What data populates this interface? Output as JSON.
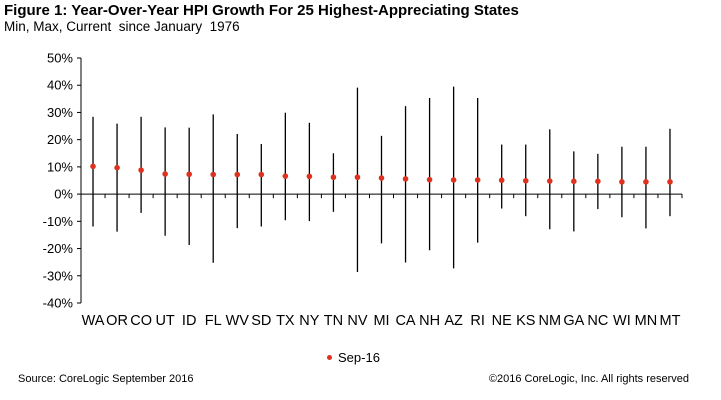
{
  "header": {
    "title": "Figure 1: Year-Over-Year HPI Growth For 25 Highest-Appreciating States",
    "subtitle": "Min, Max, Current  since January  1976"
  },
  "footer": {
    "source": "Source: CoreLogic September 2016",
    "copyright": "©2016 CoreLogic, Inc. All rights reserved"
  },
  "chart_data": {
    "type": "scatter",
    "subtype": "high-low-current",
    "title": "Figure 1: Year-Over-Year HPI Growth For 25 Highest-Appreciating States",
    "subtitle": "Min, Max, Current  since January  1976",
    "categories": [
      "WA",
      "OR",
      "CO",
      "UT",
      "ID",
      "FL",
      "WV",
      "SD",
      "TX",
      "NY",
      "TN",
      "NV",
      "MI",
      "CA",
      "NH",
      "AZ",
      "RI",
      "NE",
      "KS",
      "NM",
      "GA",
      "NC",
      "WI",
      "MN",
      "MT"
    ],
    "series": [
      {
        "name": "Sep-16",
        "color": "#e0301e",
        "values": [
          10.2,
          9.7,
          8.8,
          7.4,
          7.3,
          7.2,
          7.2,
          7.2,
          6.6,
          6.5,
          6.2,
          6.2,
          5.9,
          5.6,
          5.3,
          5.2,
          5.2,
          5.1,
          4.9,
          4.8,
          4.7,
          4.7,
          4.5,
          4.5,
          4.5
        ]
      }
    ],
    "min_values": [
      -11.9,
      -13.8,
      -6.9,
      -15.3,
      -18.7,
      -25.2,
      -12.5,
      -11.9,
      -9.6,
      -9.9,
      -6.5,
      -28.6,
      -18.1,
      -25.1,
      -20.6,
      -27.3,
      -17.8,
      -5.3,
      -8.1,
      -12.9,
      -13.7,
      -5.5,
      -8.5,
      -12.6,
      -8.1
    ],
    "max_values": [
      28.4,
      25.9,
      28.4,
      24.5,
      24.4,
      29.3,
      22.1,
      18.4,
      29.9,
      26.2,
      15.0,
      39.1,
      21.4,
      32.3,
      35.3,
      39.5,
      35.3,
      18.2,
      18.2,
      23.8,
      15.7,
      14.8,
      17.4,
      17.4,
      24.0
    ],
    "y_ticks": [
      "50%",
      "40%",
      "30%",
      "20%",
      "10%",
      "0%",
      "-10%",
      "-20%",
      "-30%",
      "-40%"
    ],
    "ylim": [
      -40,
      50
    ],
    "y_step": 10,
    "grid": false,
    "legend": "bottom-center",
    "range_color": "#000000"
  }
}
